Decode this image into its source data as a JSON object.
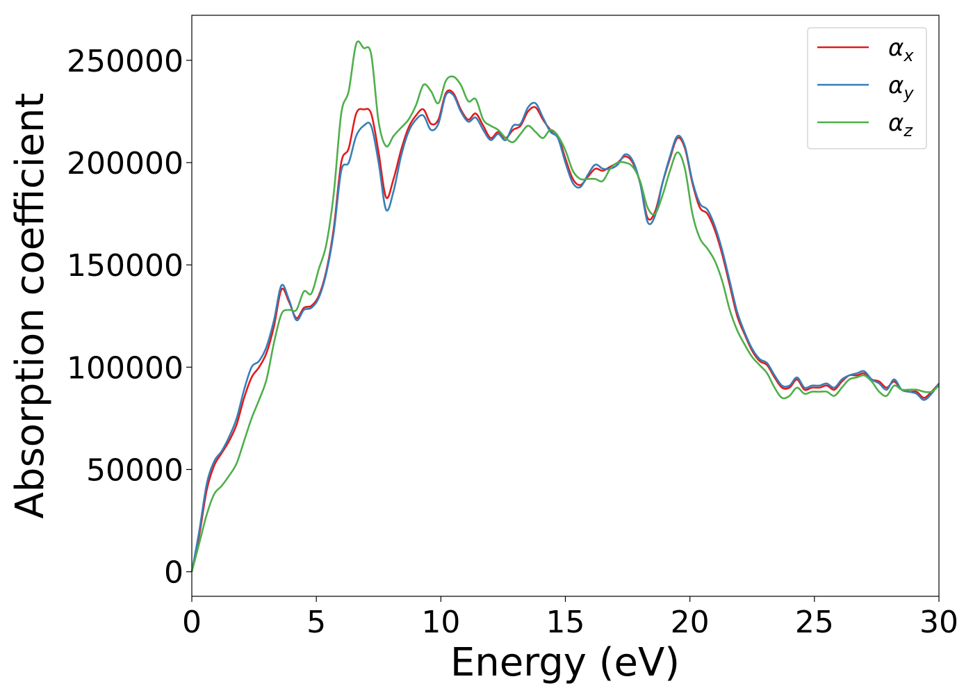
{
  "chart_data": {
    "type": "line",
    "title": "",
    "xlabel": "Energy (eV)",
    "ylabel": "Absorption coefficient",
    "xlim": [
      0,
      30
    ],
    "ylim": [
      -12000,
      272000
    ],
    "xticks": [
      0,
      5,
      10,
      15,
      20,
      25,
      30
    ],
    "xtick_labels": [
      "0",
      "5",
      "10",
      "15",
      "20",
      "25",
      "30"
    ],
    "yticks": [
      0,
      50000,
      100000,
      150000,
      200000,
      250000
    ],
    "ytick_labels": [
      "0",
      "50000",
      "100000",
      "150000",
      "200000",
      "250000"
    ],
    "grid": false,
    "legend_position": "top-right",
    "series": [
      {
        "name": "α_x",
        "legend_symbol": "α",
        "legend_subscript": "x",
        "color": "#e41a1c",
        "x": [
          0,
          0.3,
          0.6,
          0.9,
          1.2,
          1.5,
          1.8,
          2.1,
          2.4,
          2.7,
          3.0,
          3.3,
          3.6,
          3.9,
          4.2,
          4.5,
          4.8,
          5.1,
          5.4,
          5.7,
          6.0,
          6.3,
          6.6,
          6.9,
          7.2,
          7.5,
          7.8,
          8.1,
          8.4,
          8.7,
          9.0,
          9.3,
          9.6,
          9.9,
          10.2,
          10.5,
          10.8,
          11.1,
          11.4,
          11.7,
          12.0,
          12.3,
          12.6,
          12.9,
          13.2,
          13.5,
          13.8,
          14.1,
          14.4,
          14.7,
          15.0,
          15.3,
          15.6,
          15.9,
          16.2,
          16.5,
          16.8,
          17.1,
          17.4,
          17.7,
          18.0,
          18.3,
          18.6,
          18.9,
          19.2,
          19.5,
          19.8,
          20.1,
          20.4,
          20.7,
          21.0,
          21.3,
          21.6,
          21.9,
          22.2,
          22.5,
          22.8,
          23.1,
          23.4,
          23.7,
          24.0,
          24.3,
          24.6,
          24.9,
          25.2,
          25.5,
          25.8,
          26.1,
          26.4,
          26.7,
          27.0,
          27.3,
          27.6,
          27.9,
          28.2,
          28.5,
          28.8,
          29.1,
          29.4,
          29.7,
          30.0
        ],
        "y": [
          0,
          18000,
          40000,
          52000,
          58000,
          64000,
          72000,
          85000,
          95000,
          100000,
          107000,
          120000,
          138000,
          132000,
          124000,
          129000,
          130000,
          135000,
          147000,
          168000,
          200000,
          207000,
          224000,
          226000,
          224000,
          205000,
          183000,
          192000,
          206000,
          217000,
          223000,
          226000,
          219000,
          221000,
          234000,
          234000,
          226000,
          221000,
          224000,
          218000,
          212000,
          215000,
          212000,
          216000,
          218000,
          225000,
          227000,
          221000,
          216000,
          213000,
          202000,
          192000,
          189000,
          193000,
          197000,
          196000,
          198000,
          200000,
          203000,
          200000,
          190000,
          173000,
          176000,
          190000,
          202000,
          212000,
          207000,
          190000,
          178000,
          175000,
          167000,
          155000,
          140000,
          125000,
          116000,
          108000,
          103000,
          101000,
          95000,
          90000,
          90000,
          94000,
          89000,
          90000,
          90000,
          91000,
          89000,
          93000,
          96000,
          96000,
          97000,
          94000,
          93000,
          90000,
          93000,
          89000,
          88000,
          88000,
          85000,
          88000,
          92000
        ]
      },
      {
        "name": "α_y",
        "legend_symbol": "α",
        "legend_subscript": "y",
        "color": "#377eb8",
        "x": [
          0,
          0.3,
          0.6,
          0.9,
          1.2,
          1.5,
          1.8,
          2.1,
          2.4,
          2.7,
          3.0,
          3.3,
          3.6,
          3.9,
          4.2,
          4.5,
          4.8,
          5.1,
          5.4,
          5.7,
          6.0,
          6.3,
          6.6,
          6.9,
          7.2,
          7.5,
          7.8,
          8.1,
          8.4,
          8.7,
          9.0,
          9.3,
          9.6,
          9.9,
          10.2,
          10.5,
          10.8,
          11.1,
          11.4,
          11.7,
          12.0,
          12.3,
          12.6,
          12.9,
          13.2,
          13.5,
          13.8,
          14.1,
          14.4,
          14.7,
          15.0,
          15.3,
          15.6,
          15.9,
          16.2,
          16.5,
          16.8,
          17.1,
          17.4,
          17.7,
          18.0,
          18.3,
          18.6,
          18.9,
          19.2,
          19.5,
          19.8,
          20.1,
          20.4,
          20.7,
          21.0,
          21.3,
          21.6,
          21.9,
          22.2,
          22.5,
          22.8,
          23.1,
          23.4,
          23.7,
          24.0,
          24.3,
          24.6,
          24.9,
          25.2,
          25.5,
          25.8,
          26.1,
          26.4,
          26.7,
          27.0,
          27.3,
          27.6,
          27.9,
          28.2,
          28.5,
          28.8,
          29.1,
          29.4,
          29.7,
          30.0
        ],
        "y": [
          0,
          20000,
          43000,
          54000,
          59000,
          66000,
          75000,
          89000,
          100000,
          103000,
          110000,
          123000,
          140000,
          133000,
          123000,
          128000,
          129000,
          134000,
          146000,
          166000,
          196000,
          200000,
          213000,
          218000,
          218000,
          200000,
          177000,
          186000,
          203000,
          215000,
          221000,
          223000,
          216000,
          219000,
          233000,
          233000,
          225000,
          220000,
          222000,
          216000,
          211000,
          214000,
          211000,
          218000,
          219000,
          227000,
          229000,
          222000,
          215000,
          212000,
          200000,
          190000,
          188000,
          194000,
          199000,
          197000,
          197000,
          199000,
          204000,
          201000,
          190000,
          171000,
          174000,
          190000,
          203000,
          213000,
          208000,
          191000,
          180000,
          177000,
          169000,
          157000,
          142000,
          127000,
          117000,
          109000,
          104000,
          102000,
          96000,
          91000,
          91000,
          95000,
          90000,
          91000,
          91000,
          92000,
          90000,
          94000,
          96000,
          97000,
          98000,
          94000,
          92000,
          89000,
          94000,
          89000,
          88000,
          87000,
          84000,
          87000,
          92000
        ]
      },
      {
        "name": "α_z",
        "legend_symbol": "α",
        "legend_subscript": "z",
        "color": "#4daf4a",
        "x": [
          0,
          0.3,
          0.6,
          0.9,
          1.2,
          1.5,
          1.8,
          2.1,
          2.4,
          2.7,
          3.0,
          3.3,
          3.6,
          3.9,
          4.2,
          4.5,
          4.8,
          5.1,
          5.4,
          5.7,
          6.0,
          6.3,
          6.6,
          6.9,
          7.2,
          7.5,
          7.8,
          8.1,
          8.4,
          8.7,
          9.0,
          9.3,
          9.6,
          9.9,
          10.2,
          10.5,
          10.8,
          11.1,
          11.4,
          11.7,
          12.0,
          12.3,
          12.6,
          12.9,
          13.2,
          13.5,
          13.8,
          14.1,
          14.4,
          14.7,
          15.0,
          15.3,
          15.6,
          15.9,
          16.2,
          16.5,
          16.8,
          17.1,
          17.4,
          17.7,
          18.0,
          18.3,
          18.6,
          18.9,
          19.2,
          19.5,
          19.8,
          20.1,
          20.4,
          20.7,
          21.0,
          21.3,
          21.6,
          21.9,
          22.2,
          22.5,
          22.8,
          23.1,
          23.4,
          23.7,
          24.0,
          24.3,
          24.6,
          24.9,
          25.2,
          25.5,
          25.8,
          26.1,
          26.4,
          26.7,
          27.0,
          27.3,
          27.6,
          27.9,
          28.2,
          28.5,
          28.8,
          29.1,
          29.4,
          29.7,
          30.0
        ],
        "y": [
          0,
          14000,
          28000,
          38000,
          42000,
          47000,
          53000,
          64000,
          75000,
          84000,
          94000,
          112000,
          126000,
          128000,
          128000,
          137000,
          136000,
          148000,
          160000,
          185000,
          224000,
          235000,
          258000,
          256000,
          253000,
          220000,
          208000,
          213000,
          217000,
          221000,
          228000,
          238000,
          235000,
          229000,
          240000,
          242000,
          238000,
          230000,
          231000,
          221000,
          218000,
          216000,
          212000,
          210000,
          214000,
          218000,
          215000,
          212000,
          216000,
          213000,
          206000,
          196000,
          192000,
          192000,
          192000,
          191000,
          197000,
          200000,
          200000,
          198000,
          191000,
          178000,
          175000,
          184000,
          196000,
          205000,
          197000,
          175000,
          163000,
          158000,
          152000,
          142000,
          128000,
          118000,
          111000,
          105000,
          101000,
          97000,
          90000,
          85000,
          86000,
          90000,
          87000,
          88000,
          88000,
          88000,
          86000,
          90000,
          94000,
          95000,
          96000,
          93000,
          88000,
          86000,
          91000,
          89000,
          89000,
          89000,
          88000,
          88000,
          91000
        ]
      }
    ]
  }
}
